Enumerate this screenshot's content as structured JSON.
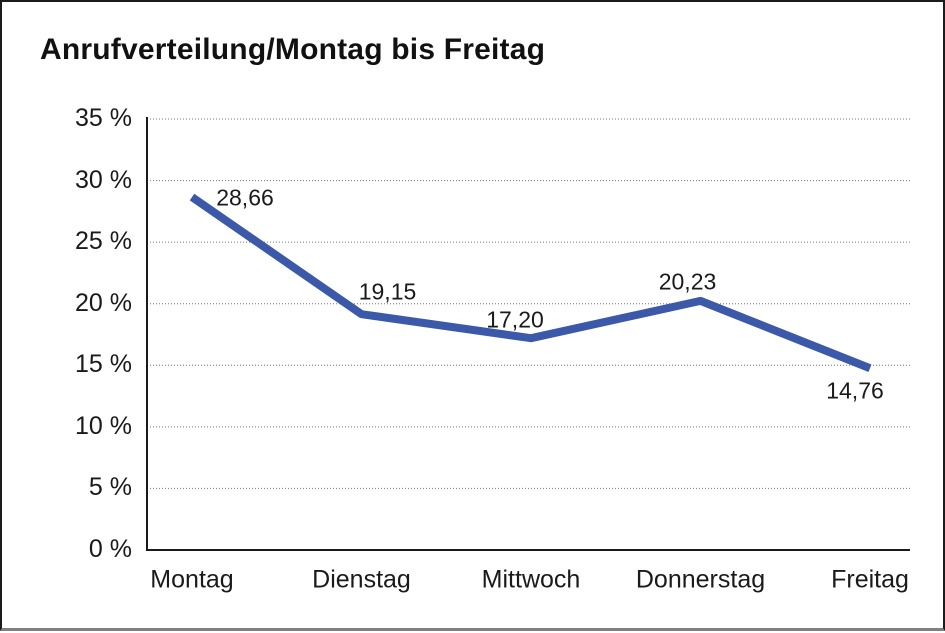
{
  "chart_data": {
    "type": "line",
    "title": "Anrufverteilung/Montag bis Freitag",
    "categories": [
      "Montag",
      "Dienstag",
      "Mittwoch",
      "Donnerstag",
      "Freitag"
    ],
    "values": [
      28.66,
      19.15,
      17.2,
      20.23,
      14.76
    ],
    "point_labels": [
      "28,66",
      "19,15",
      "17,20",
      "20,23",
      "14,76"
    ],
    "y_tick_values": [
      35,
      30,
      25,
      20,
      15,
      10,
      5,
      0
    ],
    "y_tick_labels": [
      "35 %",
      "30 %",
      "25 %",
      "20 %",
      "15 %",
      "10 %",
      "5 %",
      "0 %"
    ],
    "ylim": [
      0,
      35
    ],
    "xlabel": "",
    "ylabel": "",
    "legend": "none",
    "grid": "horizontal-dotted",
    "line_color": "#3B59A8",
    "axis_color": "#1a1a1a",
    "grid_color": "#777777",
    "text_color": "#1a1a1a"
  }
}
